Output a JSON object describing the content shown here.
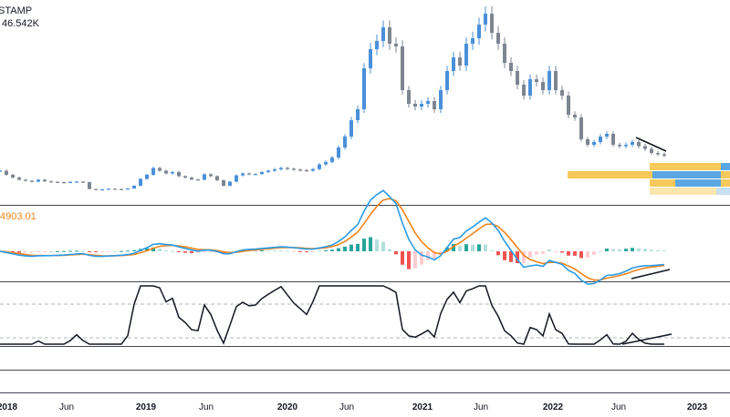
{
  "header": {
    "symbol_fragment": "STAMP",
    "volume_fragment": "46.542K"
  },
  "macd": {
    "value_fragment": "4903.01"
  },
  "colors": {
    "up": "#4a90d9",
    "down": "#7d8590",
    "macd_line": "#2b9be6",
    "signal_line": "#f0841b",
    "hist_pos_strong": "#26a69a",
    "hist_pos_weak": "#b2dfdb",
    "hist_neg_strong": "#ef5350",
    "hist_neg_weak": "#ffcdd2",
    "vp_blue": "#5aa7e3",
    "vp_yellow": "#f7c95a",
    "vp_blue_light": "#c7dff4",
    "vp_yellow_light": "#fbe6ad",
    "rsi_line": "#131722",
    "separator": "#434651",
    "dashed": "#b2b5be",
    "text": "#131722",
    "macd_text": "#f0841b"
  },
  "xaxis": {
    "labels": [
      {
        "text": "2018",
        "bold": true
      },
      {
        "text": "Jun",
        "bold": false
      },
      {
        "text": "2019",
        "bold": true
      },
      {
        "text": "Jun",
        "bold": false
      },
      {
        "text": "2020",
        "bold": true
      },
      {
        "text": "Jun",
        "bold": false
      },
      {
        "text": "2021",
        "bold": true
      },
      {
        "text": "Jun",
        "bold": false
      },
      {
        "text": "2022",
        "bold": true
      },
      {
        "text": "Jun",
        "bold": false
      },
      {
        "text": "2023",
        "bold": true
      }
    ]
  },
  "chart_data": {
    "type": "line",
    "series": [
      {
        "values": [
          10500,
          9000,
          8000,
          7200,
          6800,
          6500,
          7200,
          6600,
          6400,
          6300,
          6200,
          6400,
          6500,
          6300,
          3800,
          3600,
          3700,
          3900,
          3800,
          3700,
          4000,
          5000,
          7500,
          9000,
          11500,
          10500,
          9500,
          10000,
          8500,
          8000,
          7300,
          7200,
          9200,
          8500,
          7000,
          5000,
          6500,
          8800,
          9500,
          9200,
          9300,
          10000,
          10500,
          11000,
          11500,
          11200,
          10900,
          10700,
          10500,
          11100,
          12800,
          13700,
          15300,
          19000,
          23000,
          29000,
          33000,
          48000,
          55000,
          58000,
          63000,
          57000,
          56000,
          40000,
          35000,
          34000,
          35000,
          36000,
          33000,
          40000,
          47000,
          52000,
          49000,
          57000,
          59000,
          64000,
          68000,
          61000,
          57000,
          50000,
          47000,
          42000,
          38000,
          44000,
          43000,
          40000,
          47000,
          40000,
          38000,
          31000,
          30000,
          22000,
          20000,
          21000,
          23000,
          24000,
          20000,
          19500,
          20000,
          21000,
          19500,
          18500,
          17000,
          16500,
          16000
        ]
      }
    ]
  }
}
